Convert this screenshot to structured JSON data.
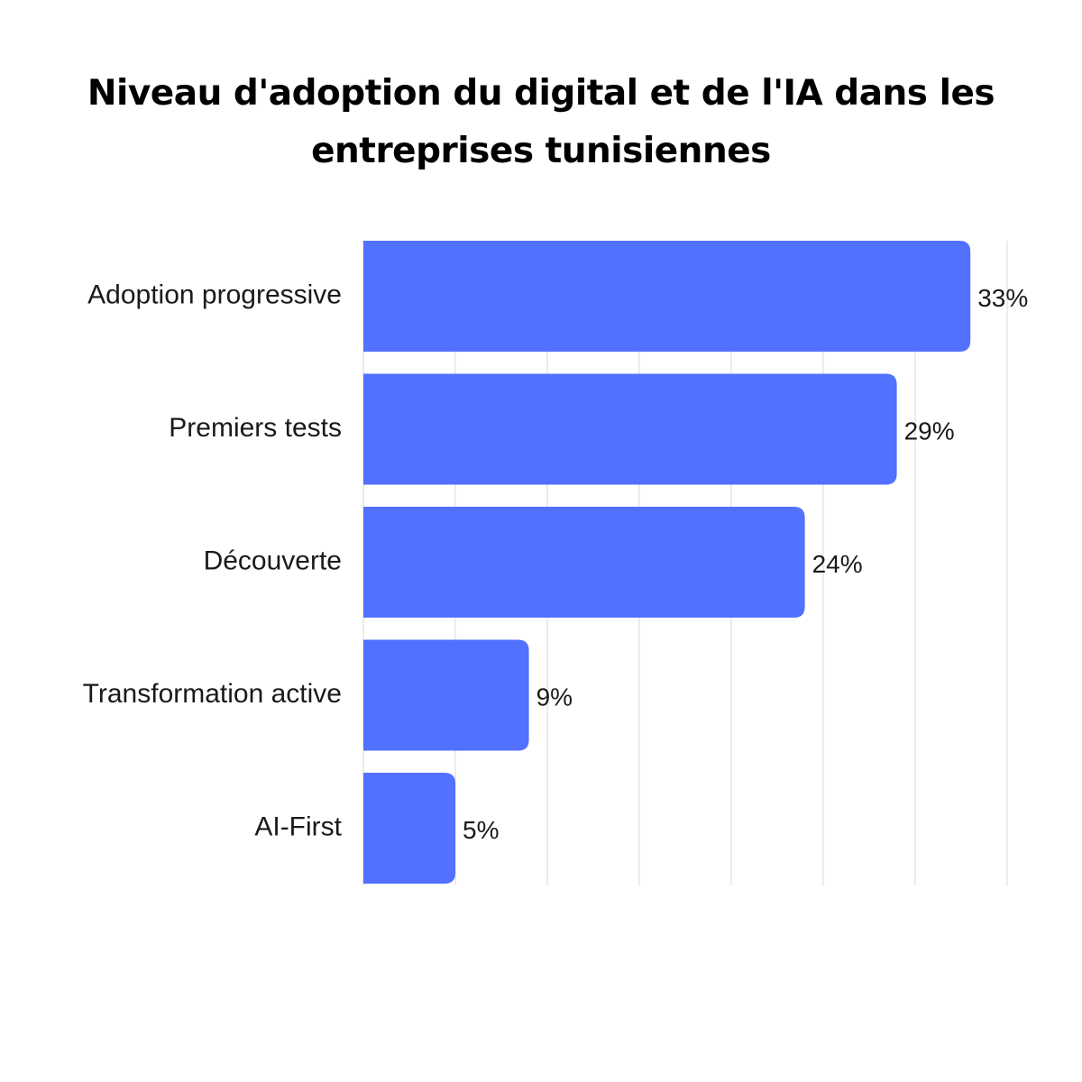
{
  "title": "Niveau d'adoption du digital et de l'IA dans les entreprises tunisiennes",
  "chart_data": {
    "type": "bar",
    "orientation": "horizontal",
    "title": "Niveau d'adoption du digital et de l'IA dans les entreprises tunisiennes",
    "xlabel": "",
    "ylabel": "",
    "categories": [
      "Adoption progressive",
      "Premiers tests",
      "Découverte",
      "Transformation active",
      "AI-First"
    ],
    "values": [
      33,
      29,
      24,
      9,
      5
    ],
    "value_labels": [
      "33%",
      "29%",
      "24%",
      "9%",
      "5%"
    ],
    "unit": "%",
    "xlim": [
      0,
      35
    ],
    "grid": "vertical",
    "legend": "none",
    "colors": {
      "bar": "#5271FF",
      "grid": "#d9d9d9",
      "text": "#1a1a1a"
    }
  }
}
